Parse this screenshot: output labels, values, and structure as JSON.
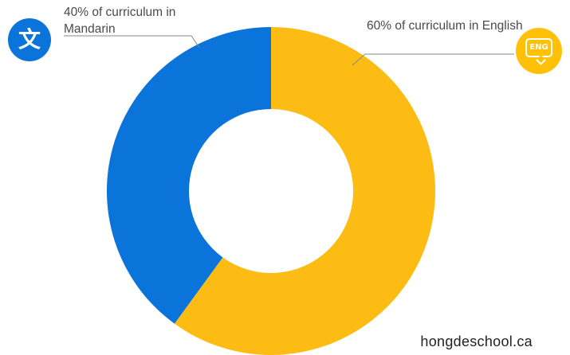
{
  "chart_data": {
    "type": "pie",
    "donut": true,
    "start": "top",
    "direction": "clockwise",
    "slices": [
      {
        "label": "60% of curriculum in English",
        "value": 60,
        "color": "#fcbc14"
      },
      {
        "label": "40% of curriculum in Mandarin",
        "value": 40,
        "color": "#0a74da"
      }
    ],
    "legend": "none"
  },
  "annotations": {
    "mandarin": "40% of curriculum in Mandarin",
    "english": "60% of curriculum in English"
  },
  "badges": {
    "mandarin": {
      "glyph": "文",
      "icon": "translate-character-icon",
      "color": "#0a74da"
    },
    "english": {
      "glyph": "ENG",
      "icon": "speech-bubble-icon",
      "color": "#ffc107"
    }
  },
  "watermark": "hongdeschool.ca"
}
